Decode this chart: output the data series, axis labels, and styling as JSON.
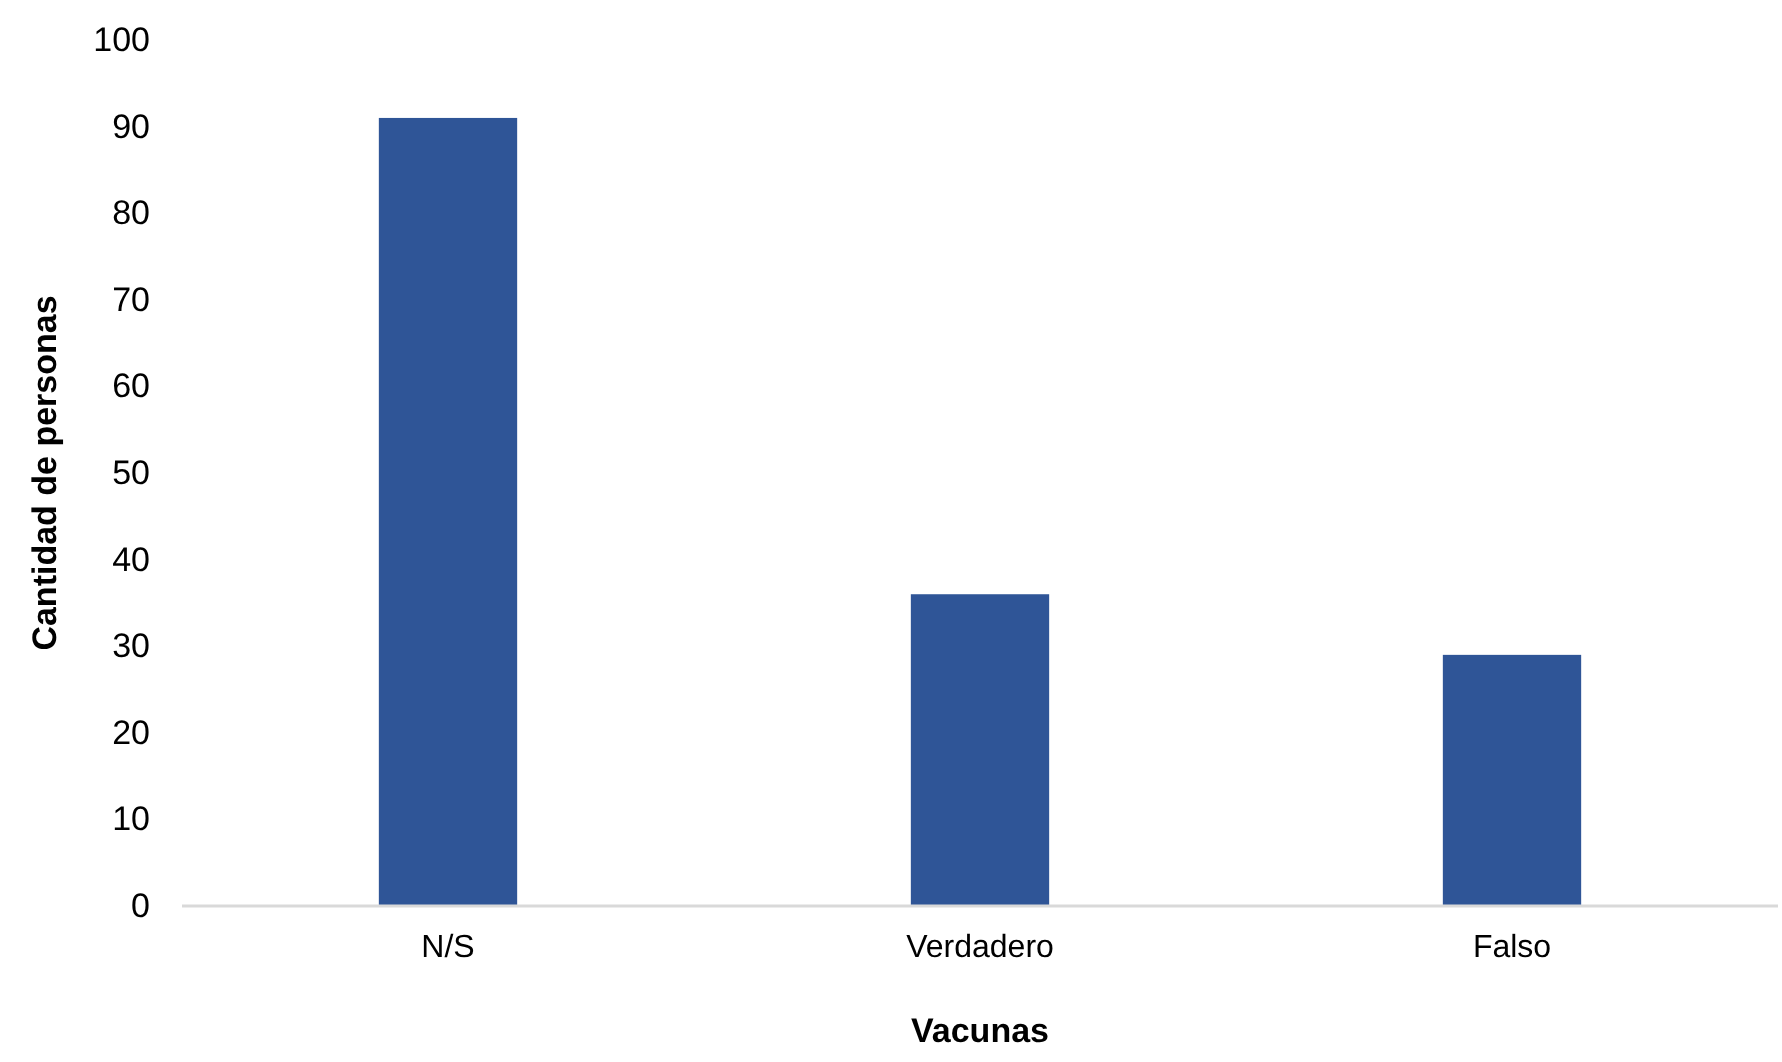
{
  "chart_data": {
    "type": "bar",
    "xlabel": "Vacunas",
    "ylabel": "Cantidad de personas",
    "categories": [
      "N/S",
      "Verdadero",
      "Falso"
    ],
    "values": [
      91,
      36,
      29
    ],
    "color": "#2f5597",
    "ylim": [
      0,
      100
    ],
    "yticks": [
      0,
      10,
      20,
      30,
      40,
      50,
      60,
      70,
      80,
      90,
      100
    ],
    "grid": false
  }
}
